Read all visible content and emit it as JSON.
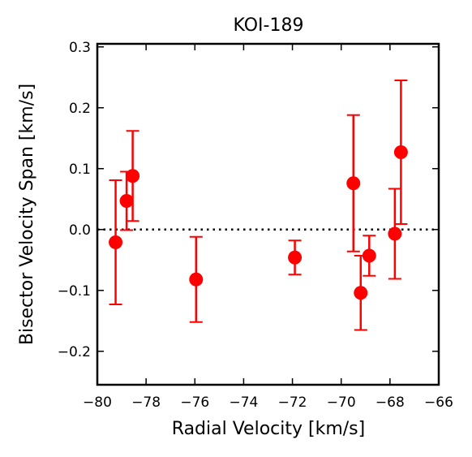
{
  "chart_data": {
    "type": "scatter",
    "title": "KOI-189",
    "xlabel": "Radial Velocity [km/s]",
    "ylabel": "Bisector Velocity Span [km/s]",
    "xlim": [
      -80,
      -66
    ],
    "ylim": [
      -0.255,
      0.305
    ],
    "xticks": [
      -80,
      -78,
      -76,
      -74,
      -72,
      -70,
      -68,
      -66
    ],
    "xtick_labels": [
      "−80",
      "−78",
      "−76",
      "−74",
      "−72",
      "−70",
      "−68",
      "−66"
    ],
    "yticks": [
      -0.2,
      -0.1,
      0.0,
      0.1,
      0.2,
      0.3
    ],
    "ytick_labels": [
      "−0.2",
      "−0.1",
      "0.0",
      "0.1",
      "0.2",
      "0.3"
    ],
    "reference_line": {
      "y": 0.0,
      "style": "dotted",
      "color": "#000000"
    },
    "grid": false,
    "series": [
      {
        "color": "#ff0000",
        "points": [
          {
            "x": -79.25,
            "y": -0.021,
            "yerr": 0.102
          },
          {
            "x": -78.8,
            "y": 0.047,
            "yerr": 0.048
          },
          {
            "x": -78.55,
            "y": 0.088,
            "yerr": 0.074
          },
          {
            "x": -75.95,
            "y": -0.082,
            "yerr": 0.07
          },
          {
            "x": -71.9,
            "y": -0.046,
            "yerr": 0.028
          },
          {
            "x": -69.5,
            "y": 0.076,
            "yerr": 0.112
          },
          {
            "x": -69.2,
            "y": -0.104,
            "yerr": 0.061
          },
          {
            "x": -68.85,
            "y": -0.043,
            "yerr": 0.033
          },
          {
            "x": -67.8,
            "y": -0.007,
            "yerr": 0.074
          },
          {
            "x": -67.55,
            "y": 0.127,
            "yerr": 0.118
          }
        ]
      }
    ]
  }
}
